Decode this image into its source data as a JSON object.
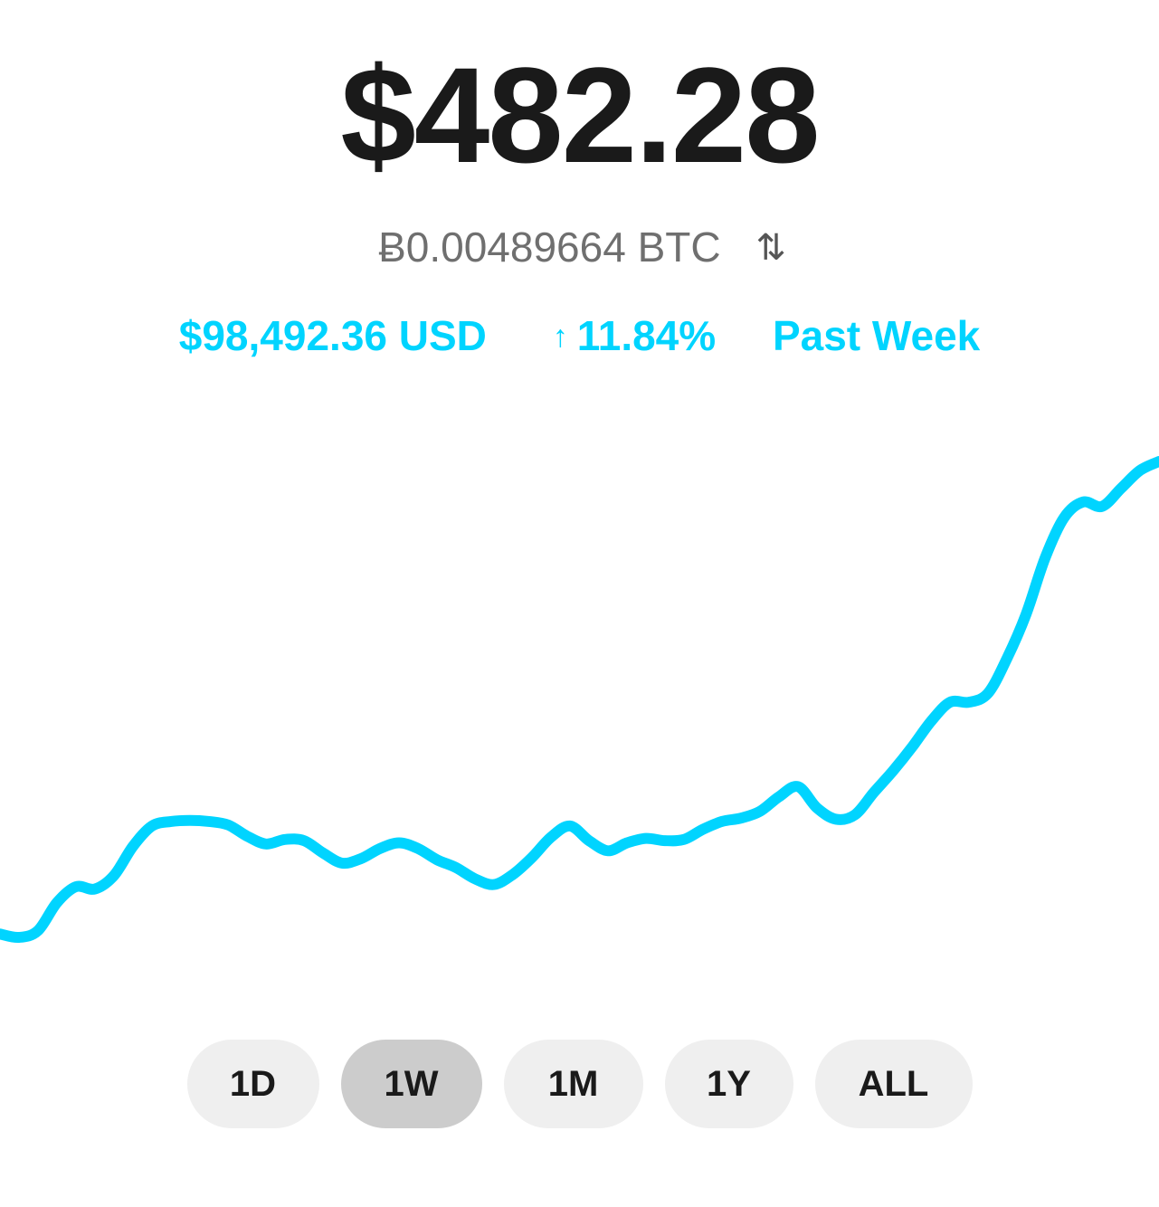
{
  "balance": {
    "amount": "$482.28",
    "btc_amount": "Ƀ0.00489664 BTC",
    "swap_icon": "swap-arrows-icon"
  },
  "market": {
    "price": "$98,492.36 USD",
    "change_arrow": "↑",
    "change": "11.84%",
    "period": "Past Week"
  },
  "colors": {
    "accent": "#00d4ff",
    "text_dark": "#1a1a1a",
    "text_gray": "#6f6f6f",
    "button_bg": "#efefef",
    "button_active_bg": "#cccccc"
  },
  "ranges": {
    "selected": "1W",
    "items": [
      {
        "label": "1D"
      },
      {
        "label": "1W"
      },
      {
        "label": "1M"
      },
      {
        "label": "1Y"
      },
      {
        "label": "ALL"
      }
    ]
  },
  "chart_data": {
    "type": "line",
    "note": "",
    "series": [
      {
        "values": [
          100.0,
          99.7,
          100.3,
          102.8,
          104.2,
          104.0,
          105.2,
          107.8,
          109.6,
          110.0,
          110.1,
          110.0,
          109.7,
          108.7,
          108.0,
          108.4,
          108.3,
          107.2,
          106.3,
          106.7,
          107.6,
          108.1,
          107.6,
          106.6,
          105.9,
          104.9,
          104.4,
          105.3,
          106.8,
          108.6,
          109.6,
          108.3,
          107.4,
          108.1,
          108.5,
          108.3,
          108.4,
          109.3,
          110.0,
          110.3,
          110.9,
          112.2,
          113.1,
          111.2,
          110.2,
          110.6,
          112.6,
          114.5,
          116.6,
          118.9,
          120.6,
          120.6,
          121.4,
          124.5,
          128.4,
          133.4,
          137.0,
          138.4,
          138.0,
          139.6,
          141.2,
          142.0
        ]
      }
    ],
    "grid": false,
    "legend": false
  }
}
